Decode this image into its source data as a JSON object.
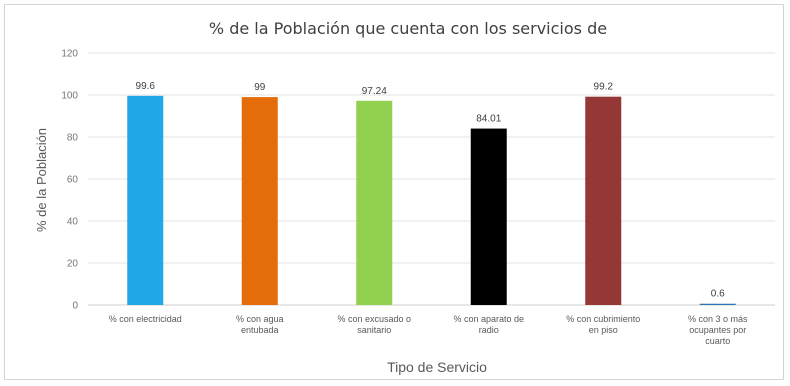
{
  "chart_data": {
    "type": "bar",
    "title": "% de la Población que cuenta con los servicios de",
    "xlabel": "Tipo de Servicio",
    "ylabel": "% de la Población",
    "ylim": [
      0,
      120
    ],
    "yticks": [
      0,
      20,
      40,
      60,
      80,
      100,
      120
    ],
    "grid": true,
    "categories": [
      [
        "% con electricidad"
      ],
      [
        "% con agua",
        "entubada"
      ],
      [
        "% con excusado o",
        "sanitario"
      ],
      [
        "% con aparato de",
        "radio"
      ],
      [
        "% con cubrimiento",
        "en piso"
      ],
      [
        "% con 3 o más",
        "ocupantes por",
        "cuarto"
      ]
    ],
    "values": [
      99.6,
      99,
      97.24,
      84.01,
      99.2,
      0.6
    ],
    "value_labels": [
      "99.6",
      "99",
      "97.24",
      "84.01",
      "99.2",
      "0.6"
    ],
    "colors": [
      "#1FA7E8",
      "#E46C0A",
      "#92D050",
      "#000000",
      "#953735",
      "#2E75B6"
    ]
  }
}
